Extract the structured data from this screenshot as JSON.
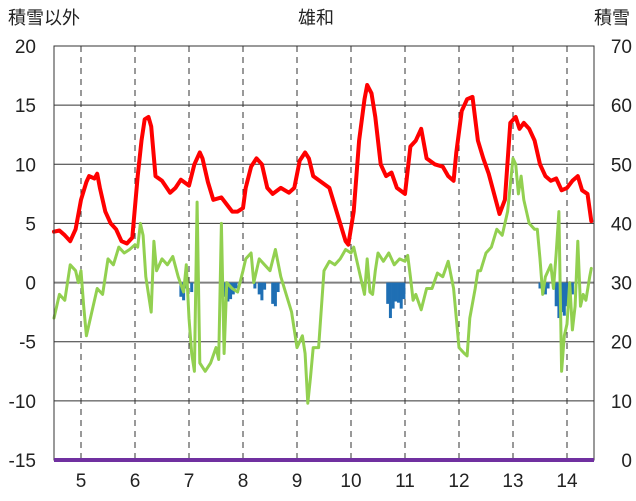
{
  "chart_data": {
    "type": "line",
    "title": "雄和",
    "left_axis_label": "積雪以外",
    "right_axis_label": "積雪",
    "ylim_left": [
      -15,
      20
    ],
    "yticks_left": [
      "20",
      "15",
      "10",
      "5",
      "0",
      "-5",
      "-10",
      "-15"
    ],
    "ylim_right": [
      0,
      70
    ],
    "yticks_right": [
      "70",
      "60",
      "50",
      "40",
      "30",
      "20",
      "10",
      "0"
    ],
    "xlim": [
      4.5,
      14.5
    ],
    "xticks": [
      "5",
      "6",
      "7",
      "8",
      "9",
      "10",
      "11",
      "12",
      "13",
      "14"
    ],
    "grid": "vertical dashed at each day, horizontal at every 5 units",
    "colors": {
      "red_series": "#ff0000",
      "green_series": "#92d050",
      "blue_bars": "#1f6fb4",
      "zero_line": "#808080",
      "baseline": "#7030a0",
      "grid": "#333333"
    },
    "series": [
      {
        "axis": "left",
        "color": "#ff0000",
        "points": [
          [
            4.5,
            4.3
          ],
          [
            4.6,
            4.4
          ],
          [
            4.7,
            4.0
          ],
          [
            4.8,
            3.5
          ],
          [
            4.9,
            4.5
          ],
          [
            5.0,
            7.0
          ],
          [
            5.1,
            8.5
          ],
          [
            5.15,
            9.0
          ],
          [
            5.25,
            8.8
          ],
          [
            5.3,
            9.2
          ],
          [
            5.35,
            8.0
          ],
          [
            5.45,
            6.0
          ],
          [
            5.55,
            5.0
          ],
          [
            5.65,
            4.5
          ],
          [
            5.75,
            3.5
          ],
          [
            5.85,
            3.3
          ],
          [
            5.95,
            3.8
          ],
          [
            6.05,
            9.0
          ],
          [
            6.12,
            12.0
          ],
          [
            6.18,
            13.8
          ],
          [
            6.25,
            14.0
          ],
          [
            6.3,
            13.2
          ],
          [
            6.38,
            9.0
          ],
          [
            6.5,
            8.6
          ],
          [
            6.65,
            7.6
          ],
          [
            6.75,
            8.0
          ],
          [
            6.85,
            8.7
          ],
          [
            7.0,
            8.2
          ],
          [
            7.1,
            10.0
          ],
          [
            7.2,
            11.0
          ],
          [
            7.25,
            10.5
          ],
          [
            7.35,
            8.5
          ],
          [
            7.45,
            7.0
          ],
          [
            7.6,
            7.2
          ],
          [
            7.7,
            6.6
          ],
          [
            7.8,
            6.0
          ],
          [
            7.9,
            6.0
          ],
          [
            8.0,
            6.3
          ],
          [
            8.05,
            8.0
          ],
          [
            8.15,
            9.8
          ],
          [
            8.25,
            10.5
          ],
          [
            8.35,
            10.0
          ],
          [
            8.45,
            8.0
          ],
          [
            8.55,
            7.5
          ],
          [
            8.7,
            8.0
          ],
          [
            8.85,
            7.6
          ],
          [
            8.95,
            8.0
          ],
          [
            9.05,
            10.3
          ],
          [
            9.15,
            11.0
          ],
          [
            9.22,
            10.5
          ],
          [
            9.3,
            9.0
          ],
          [
            9.45,
            8.5
          ],
          [
            9.6,
            8.0
          ],
          [
            9.7,
            6.5
          ],
          [
            9.8,
            5.0
          ],
          [
            9.9,
            3.5
          ],
          [
            9.95,
            3.2
          ],
          [
            10.05,
            6.0
          ],
          [
            10.15,
            12.0
          ],
          [
            10.25,
            15.5
          ],
          [
            10.3,
            16.7
          ],
          [
            10.38,
            16.0
          ],
          [
            10.45,
            14.0
          ],
          [
            10.55,
            10.0
          ],
          [
            10.65,
            9.0
          ],
          [
            10.75,
            9.3
          ],
          [
            10.85,
            8.0
          ],
          [
            11.0,
            7.5
          ],
          [
            11.1,
            11.5
          ],
          [
            11.2,
            12.0
          ],
          [
            11.3,
            13.0
          ],
          [
            11.4,
            10.5
          ],
          [
            11.55,
            10.0
          ],
          [
            11.7,
            9.8
          ],
          [
            11.8,
            9.0
          ],
          [
            11.9,
            8.6
          ],
          [
            11.95,
            11.0
          ],
          [
            12.05,
            14.5
          ],
          [
            12.15,
            15.5
          ],
          [
            12.25,
            15.7
          ],
          [
            12.35,
            12.0
          ],
          [
            12.45,
            10.5
          ],
          [
            12.55,
            9.2
          ],
          [
            12.65,
            7.5
          ],
          [
            12.75,
            5.8
          ],
          [
            12.85,
            7.0
          ],
          [
            12.95,
            13.5
          ],
          [
            13.05,
            14.0
          ],
          [
            13.12,
            13.0
          ],
          [
            13.2,
            13.5
          ],
          [
            13.3,
            13.0
          ],
          [
            13.4,
            12.0
          ],
          [
            13.5,
            10.0
          ],
          [
            13.6,
            9.0
          ],
          [
            13.7,
            8.6
          ],
          [
            13.8,
            8.8
          ],
          [
            13.9,
            7.8
          ],
          [
            14.0,
            8.0
          ],
          [
            14.1,
            8.6
          ],
          [
            14.2,
            9.0
          ],
          [
            14.28,
            7.8
          ],
          [
            14.38,
            7.5
          ],
          [
            14.45,
            5.2
          ]
        ]
      },
      {
        "axis": "left",
        "color": "#92d050",
        "points": [
          [
            4.5,
            -3.0
          ],
          [
            4.6,
            -1.0
          ],
          [
            4.7,
            -1.5
          ],
          [
            4.8,
            1.5
          ],
          [
            4.9,
            1.0
          ],
          [
            4.95,
            0.0
          ],
          [
            5.0,
            1.0
          ],
          [
            5.05,
            -2.0
          ],
          [
            5.1,
            -4.5
          ],
          [
            5.2,
            -2.5
          ],
          [
            5.3,
            -0.5
          ],
          [
            5.4,
            -1.0
          ],
          [
            5.5,
            2.0
          ],
          [
            5.6,
            1.5
          ],
          [
            5.7,
            3.0
          ],
          [
            5.8,
            2.5
          ],
          [
            5.9,
            2.8
          ],
          [
            6.0,
            3.2
          ],
          [
            6.05,
            3.0
          ],
          [
            6.1,
            5.0
          ],
          [
            6.15,
            4.0
          ],
          [
            6.2,
            0.5
          ],
          [
            6.25,
            -1.0
          ],
          [
            6.3,
            -2.5
          ],
          [
            6.35,
            3.5
          ],
          [
            6.4,
            1.0
          ],
          [
            6.5,
            2.0
          ],
          [
            6.6,
            1.5
          ],
          [
            6.7,
            2.2
          ],
          [
            6.8,
            0.5
          ],
          [
            6.9,
            -0.8
          ],
          [
            6.95,
            1.5
          ],
          [
            7.0,
            -3.0
          ],
          [
            7.05,
            -6.0
          ],
          [
            7.1,
            -7.5
          ],
          [
            7.15,
            6.8
          ],
          [
            7.2,
            -6.8
          ],
          [
            7.3,
            -7.5
          ],
          [
            7.4,
            -6.8
          ],
          [
            7.5,
            -5.5
          ],
          [
            7.55,
            -6.5
          ],
          [
            7.6,
            5.0
          ],
          [
            7.65,
            -6.0
          ],
          [
            7.7,
            0.0
          ],
          [
            7.8,
            -0.5
          ],
          [
            7.9,
            -0.8
          ],
          [
            8.0,
            1.0
          ],
          [
            8.05,
            2.0
          ],
          [
            8.15,
            2.5
          ],
          [
            8.2,
            0.0
          ],
          [
            8.3,
            2.0
          ],
          [
            8.4,
            1.5
          ],
          [
            8.5,
            1.0
          ],
          [
            8.6,
            2.8
          ],
          [
            8.7,
            0.5
          ],
          [
            8.8,
            -1.0
          ],
          [
            8.9,
            -2.5
          ],
          [
            9.0,
            -5.5
          ],
          [
            9.1,
            -4.5
          ],
          [
            9.15,
            -6.0
          ],
          [
            9.2,
            -10.2
          ],
          [
            9.25,
            -8.0
          ],
          [
            9.3,
            -5.5
          ],
          [
            9.4,
            -5.5
          ],
          [
            9.5,
            1.0
          ],
          [
            9.6,
            1.8
          ],
          [
            9.7,
            1.5
          ],
          [
            9.8,
            2.0
          ],
          [
            9.9,
            2.8
          ],
          [
            10.0,
            2.5
          ],
          [
            10.05,
            3.0
          ],
          [
            10.1,
            2.0
          ],
          [
            10.2,
            0.0
          ],
          [
            10.25,
            -1.0
          ],
          [
            10.3,
            2.0
          ],
          [
            10.35,
            -0.8
          ],
          [
            10.4,
            -1.0
          ],
          [
            10.45,
            1.0
          ],
          [
            10.5,
            2.5
          ],
          [
            10.6,
            1.8
          ],
          [
            10.7,
            2.5
          ],
          [
            10.8,
            1.5
          ],
          [
            10.9,
            2.0
          ],
          [
            11.0,
            1.8
          ],
          [
            11.05,
            2.3
          ],
          [
            11.1,
            0.5
          ],
          [
            11.15,
            -1.5
          ],
          [
            11.2,
            -1.0
          ],
          [
            11.3,
            -2.3
          ],
          [
            11.4,
            -0.5
          ],
          [
            11.5,
            -0.5
          ],
          [
            11.6,
            0.8
          ],
          [
            11.7,
            0.5
          ],
          [
            11.8,
            1.8
          ],
          [
            11.9,
            -0.5
          ],
          [
            12.0,
            -5.5
          ],
          [
            12.1,
            -6.0
          ],
          [
            12.15,
            -6.2
          ],
          [
            12.2,
            -3.0
          ],
          [
            12.3,
            -0.5
          ],
          [
            12.35,
            1.0
          ],
          [
            12.4,
            1.0
          ],
          [
            12.5,
            2.5
          ],
          [
            12.6,
            3.0
          ],
          [
            12.7,
            4.5
          ],
          [
            12.8,
            4.0
          ],
          [
            12.9,
            6.0
          ],
          [
            13.0,
            10.5
          ],
          [
            13.05,
            10.0
          ],
          [
            13.1,
            7.5
          ],
          [
            13.15,
            9.0
          ],
          [
            13.2,
            7.0
          ],
          [
            13.3,
            5.0
          ],
          [
            13.4,
            4.5
          ],
          [
            13.45,
            4.5
          ],
          [
            13.5,
            2.0
          ],
          [
            13.55,
            -1.0
          ],
          [
            13.6,
            0.5
          ],
          [
            13.7,
            1.5
          ],
          [
            13.75,
            -0.5
          ],
          [
            13.8,
            2.5
          ],
          [
            13.85,
            6.0
          ],
          [
            13.9,
            -7.5
          ],
          [
            13.95,
            -4.5
          ],
          [
            14.0,
            -3.5
          ],
          [
            14.05,
            0.0
          ],
          [
            14.1,
            -4.0
          ],
          [
            14.15,
            -2.0
          ],
          [
            14.2,
            3.5
          ],
          [
            14.25,
            -2.0
          ],
          [
            14.3,
            -1.0
          ],
          [
            14.35,
            -1.5
          ],
          [
            14.42,
            0.5
          ],
          [
            14.45,
            1.2
          ]
        ]
      }
    ],
    "bars": {
      "axis": "left",
      "color": "#1f6fb4",
      "points": [
        [
          6.85,
          -1.2
        ],
        [
          6.9,
          -1.5
        ],
        [
          6.95,
          -0.5
        ],
        [
          7.05,
          -0.8
        ],
        [
          7.62,
          -0.5
        ],
        [
          7.67,
          -1.2
        ],
        [
          7.72,
          -1.6
        ],
        [
          7.77,
          -1.4
        ],
        [
          7.82,
          -1.0
        ],
        [
          7.87,
          -0.5
        ],
        [
          8.22,
          -0.5
        ],
        [
          8.3,
          -1.0
        ],
        [
          8.35,
          -1.5
        ],
        [
          8.4,
          -0.6
        ],
        [
          8.55,
          -1.8
        ],
        [
          8.6,
          -2.0
        ],
        [
          8.65,
          -0.8
        ],
        [
          10.68,
          -1.8
        ],
        [
          10.73,
          -3.0
        ],
        [
          10.78,
          -2.2
        ],
        [
          10.83,
          -1.6
        ],
        [
          10.88,
          -1.7
        ],
        [
          10.93,
          -2.2
        ],
        [
          10.98,
          -1.4
        ],
        [
          13.5,
          -0.5
        ],
        [
          13.6,
          -1.0
        ],
        [
          13.65,
          -0.5
        ],
        [
          13.8,
          -2.0
        ],
        [
          13.85,
          -3.0
        ],
        [
          13.9,
          -2.5
        ],
        [
          13.95,
          -2.8
        ],
        [
          14.0,
          -2.0
        ],
        [
          14.05,
          -1.8
        ],
        [
          14.1,
          -1.0
        ]
      ]
    }
  }
}
